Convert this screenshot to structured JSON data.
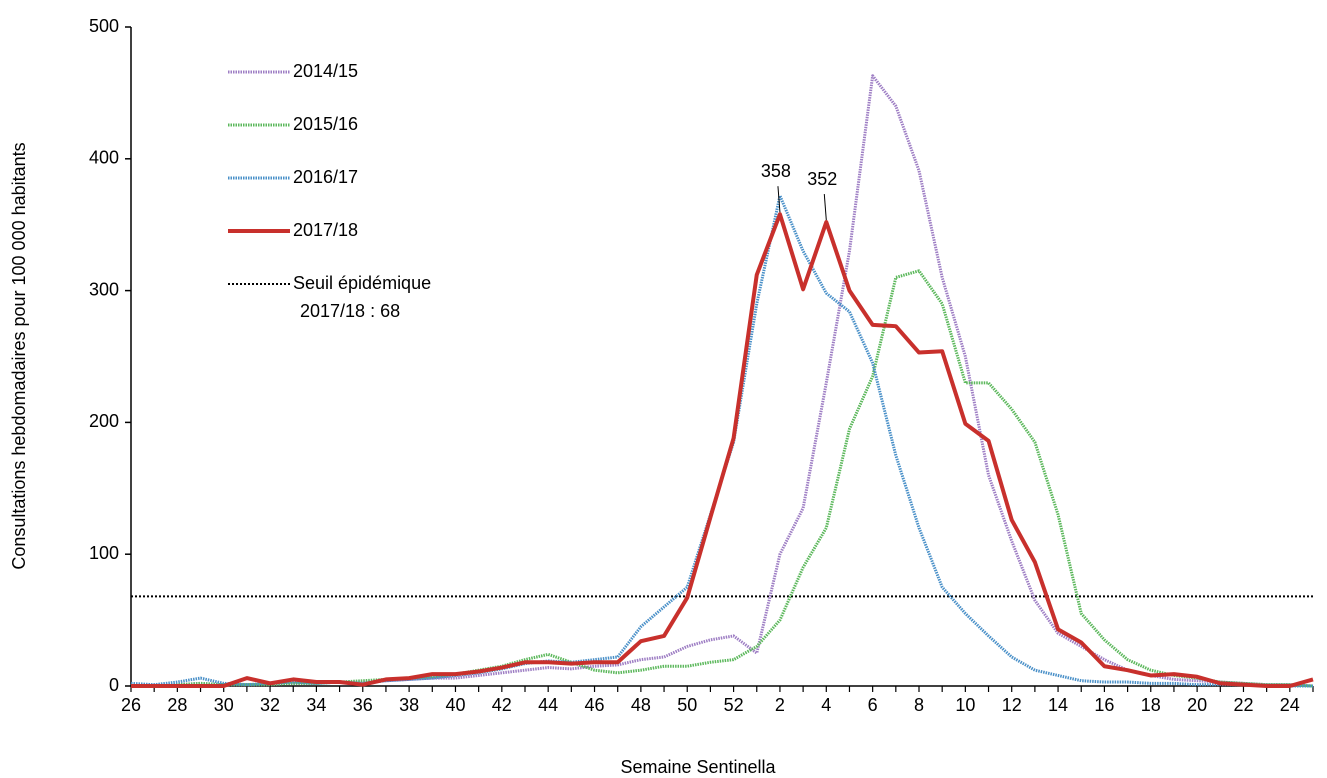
{
  "chart_data": {
    "type": "line",
    "x_label": "Semaine Sentinella",
    "y_label": "Consultations hebdomadaires pour 100 000 habitants",
    "categories": [
      26,
      null,
      28,
      null,
      30,
      null,
      32,
      null,
      34,
      null,
      36,
      null,
      38,
      null,
      40,
      null,
      42,
      null,
      44,
      null,
      46,
      null,
      48,
      null,
      50,
      null,
      52,
      null,
      2,
      null,
      4,
      null,
      6,
      null,
      8,
      null,
      10,
      null,
      12,
      null,
      14,
      null,
      16,
      null,
      18,
      null,
      20,
      null,
      22,
      null,
      24,
      null
    ],
    "ylim": [
      0,
      500
    ],
    "yticks": [
      0,
      100,
      200,
      300,
      400,
      500
    ],
    "legend": "top-left",
    "series": [
      {
        "name": "2014/15",
        "color": "#9e7ec4",
        "style": "dotted",
        "values": [
          0,
          1,
          1,
          2,
          1,
          1,
          1,
          2,
          2,
          3,
          3,
          4,
          5,
          6,
          6,
          8,
          10,
          12,
          14,
          13,
          15,
          16,
          20,
          22,
          30,
          35,
          38,
          25,
          100,
          135,
          230,
          330,
          463,
          440,
          391,
          310,
          250,
          160,
          110,
          65,
          40,
          30,
          20,
          12,
          8,
          5,
          4,
          3,
          2,
          1,
          1,
          0
        ]
      },
      {
        "name": "2015/16",
        "color": "#5cb85c",
        "style": "dotted",
        "values": [
          0,
          0,
          1,
          2,
          1,
          1,
          1,
          2,
          2,
          3,
          4,
          5,
          6,
          7,
          9,
          12,
          15,
          20,
          24,
          18,
          12,
          10,
          12,
          15,
          15,
          18,
          20,
          30,
          50,
          90,
          120,
          195,
          235,
          310,
          315,
          290,
          230,
          230,
          210,
          185,
          130,
          55,
          35,
          20,
          12,
          8,
          6,
          3,
          2,
          1,
          1,
          0
        ]
      },
      {
        "name": "2016/17",
        "color": "#4a90c8",
        "style": "dotted",
        "values": [
          2,
          1,
          3,
          6,
          2,
          1,
          2,
          3,
          2,
          3,
          2,
          4,
          5,
          6,
          8,
          10,
          13,
          17,
          19,
          18,
          20,
          22,
          45,
          60,
          75,
          130,
          185,
          290,
          372,
          330,
          298,
          284,
          245,
          175,
          120,
          75,
          55,
          38,
          22,
          12,
          8,
          4,
          3,
          3,
          2,
          2,
          1,
          1,
          1,
          0,
          0,
          0
        ]
      },
      {
        "name": "2017/18",
        "color": "#c8302c",
        "style": "solid",
        "values": [
          0,
          0,
          0,
          0,
          0,
          6,
          2,
          5,
          3,
          3,
          1,
          5,
          6,
          9,
          9,
          11,
          14,
          18,
          18,
          17,
          18,
          18,
          34,
          38,
          67,
          128,
          188,
          312,
          358,
          301,
          352,
          300,
          274,
          273,
          253,
          254,
          199,
          186,
          126,
          94,
          43,
          33,
          15,
          12,
          8,
          9,
          7,
          2,
          1,
          0,
          0,
          5
        ],
        "value_labels": [
          null,
          null,
          null,
          null,
          null,
          null,
          null,
          null,
          null,
          null,
          null,
          null,
          null,
          null,
          null,
          null,
          null,
          null,
          null,
          null,
          null,
          null,
          null,
          null,
          null,
          null,
          null,
          null,
          "358",
          null,
          "352",
          null,
          null,
          null,
          null,
          null,
          null,
          null,
          null,
          null,
          null,
          null,
          null,
          null,
          null,
          null,
          null,
          null,
          null,
          null,
          null,
          null
        ]
      }
    ],
    "threshold": {
      "value": 68,
      "label": "Seuil épidémique",
      "label2": "2017/18 : 68",
      "color": "#000000"
    }
  }
}
